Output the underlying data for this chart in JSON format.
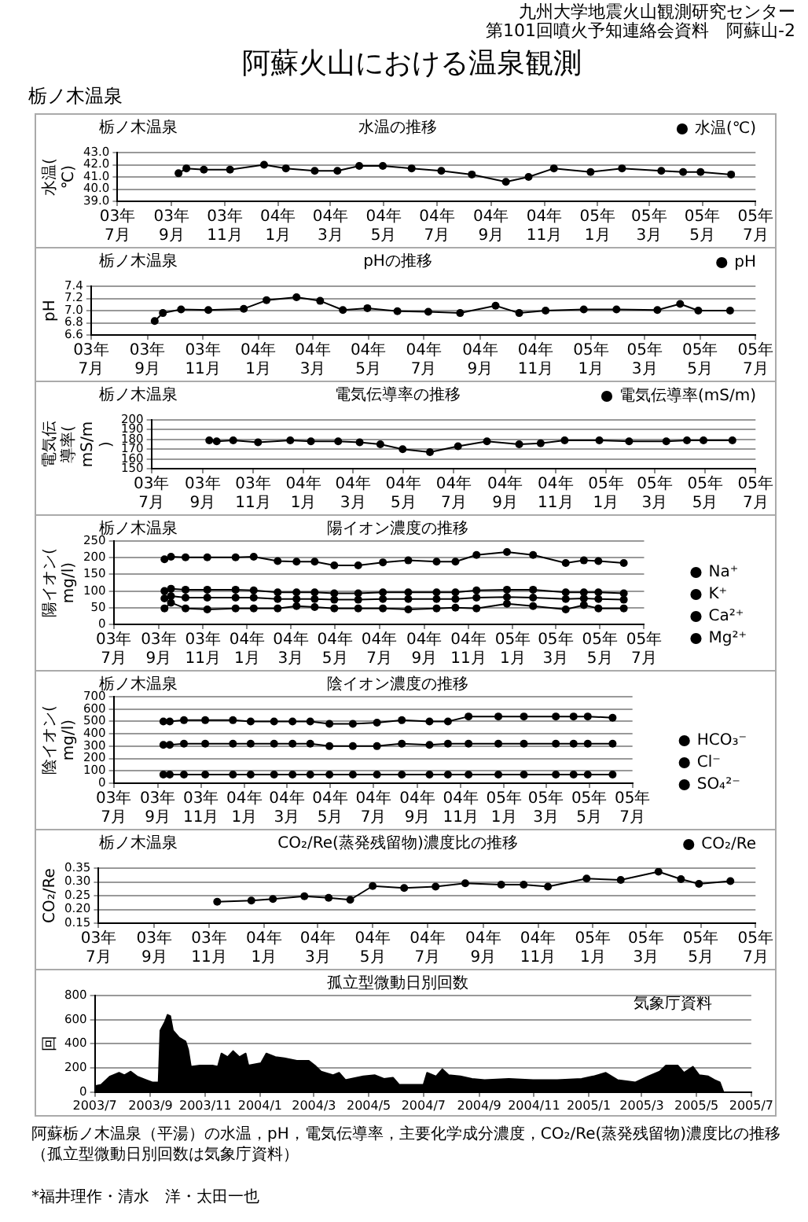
{
  "chart_data": [
    {
      "type": "line",
      "title": "水温の推移",
      "subtitle": "栃ノ木温泉",
      "ylabel": "水温(℃)",
      "annotations": [
        "九州大学地震火山観測研究センター",
        "第101回噴火予知連絡会資料　阿蘇山-2",
        "阿蘇火山における温泉観測",
        "栃ノ木温泉"
      ],
      "x": [
        "2003-09-09",
        "2003-09-18",
        "2003-10-08",
        "2003-11-07",
        "2003-12-16",
        "2004-01-10",
        "2004-02-12",
        "2004-03-09",
        "2004-04-03",
        "2004-04-30",
        "2004-06-02",
        "2004-07-06",
        "2004-08-10",
        "2004-09-18",
        "2004-10-14",
        "2004-11-12",
        "2004-12-24",
        "2005-01-29",
        "2005-03-15",
        "2005-04-09",
        "2005-04-29",
        "2005-06-03"
      ],
      "series": [
        {
          "name": "水温(℃)",
          "color": "#000000",
          "values": [
            41.3,
            41.7,
            41.6,
            41.6,
            42.0,
            41.7,
            41.5,
            41.5,
            41.9,
            41.9,
            41.7,
            41.5,
            41.2,
            40.6,
            41.0,
            41.7,
            41.4,
            41.7,
            41.5,
            41.4,
            41.4,
            41.2
          ]
        }
      ],
      "xlim": [
        "2003-07",
        "2005-07"
      ],
      "xticks": [
        {
          "value": "2003-07",
          "label": "03年7月"
        },
        {
          "value": "2003-09",
          "label": "03年9月"
        },
        {
          "value": "2003-11",
          "label": "03年11月"
        },
        {
          "value": "2004-01",
          "label": "04年1月"
        },
        {
          "value": "2004-03",
          "label": "04年3月"
        },
        {
          "value": "2004-05",
          "label": "04年5月"
        },
        {
          "value": "2004-07",
          "label": "04年7月"
        },
        {
          "value": "2004-09",
          "label": "04年9月"
        },
        {
          "value": "2004-11",
          "label": "04年11月"
        },
        {
          "value": "2005-01",
          "label": "05年1月"
        },
        {
          "value": "2005-03",
          "label": "05年3月"
        },
        {
          "value": "2005-05",
          "label": "05年5月"
        },
        {
          "value": "2005-07",
          "label": "05年7月"
        }
      ],
      "ylim": [
        39,
        43
      ],
      "yticks": [
        {
          "value": 39,
          "label": "39.0"
        },
        {
          "value": 40,
          "label": "40.0"
        },
        {
          "value": 41,
          "label": "41.0"
        },
        {
          "value": 42,
          "label": "42.0"
        },
        {
          "value": 43,
          "label": "43.0"
        }
      ],
      "grid": "y",
      "legend": "top right",
      "marker": "circle"
    },
    {
      "type": "line",
      "title": "pHの推移",
      "subtitle": "栃ノ木温泉",
      "ylabel": "pH",
      "x": [
        "2003-09-09",
        "2003-09-18",
        "2003-10-08",
        "2003-11-07",
        "2003-12-16",
        "2004-01-10",
        "2004-02-12",
        "2004-03-09",
        "2004-04-03",
        "2004-04-30",
        "2004-06-02",
        "2004-07-06",
        "2004-08-10",
        "2004-09-18",
        "2004-10-14",
        "2004-11-12",
        "2004-12-24",
        "2005-01-29",
        "2005-03-15",
        "2005-04-09",
        "2005-04-29",
        "2005-06-03"
      ],
      "series": [
        {
          "name": "pH",
          "color": "#000000",
          "values": [
            6.83,
            6.96,
            7.02,
            7.01,
            7.03,
            7.17,
            7.22,
            7.16,
            7.01,
            7.04,
            6.99,
            6.98,
            6.96,
            7.08,
            6.96,
            7.0,
            7.02,
            7.02,
            7.01,
            7.11,
            7.0,
            7.0
          ]
        }
      ],
      "xlim": [
        "2003-07",
        "2005-07"
      ],
      "xticks": [
        {
          "value": "2003-07",
          "label": "03年7月"
        },
        {
          "value": "2003-09",
          "label": "03年9月"
        },
        {
          "value": "2003-11",
          "label": "03年11月"
        },
        {
          "value": "2004-01",
          "label": "04年1月"
        },
        {
          "value": "2004-03",
          "label": "04年3月"
        },
        {
          "value": "2004-05",
          "label": "04年5月"
        },
        {
          "value": "2004-07",
          "label": "04年7月"
        },
        {
          "value": "2004-09",
          "label": "04年9月"
        },
        {
          "value": "2004-11",
          "label": "04年11月"
        },
        {
          "value": "2005-01",
          "label": "05年1月"
        },
        {
          "value": "2005-03",
          "label": "05年3月"
        },
        {
          "value": "2005-05",
          "label": "05年5月"
        },
        {
          "value": "2005-07",
          "label": "05年7月"
        }
      ],
      "ylim": [
        6.6,
        7.4
      ],
      "yticks": [
        6.6,
        6.8,
        {
          "value": 7,
          "label": "7.0"
        },
        7.2,
        7.4
      ],
      "grid": "y",
      "legend": "top right",
      "marker": "circle"
    },
    {
      "type": "line",
      "title": "電気伝導率の推移",
      "subtitle": "栃ノ木温泉",
      "ylabel": "電気伝導率(mS/m)",
      "x": [
        "2003-09-09",
        "2003-09-18",
        "2003-10-08",
        "2003-11-07",
        "2003-12-16",
        "2004-01-10",
        "2004-02-12",
        "2004-03-09",
        "2004-04-03",
        "2004-04-30",
        "2004-06-02",
        "2004-07-06",
        "2004-08-10",
        "2004-09-18",
        "2004-10-14",
        "2004-11-12",
        "2004-12-24",
        "2005-01-29",
        "2005-03-15",
        "2005-04-09",
        "2005-04-29",
        "2005-06-03"
      ],
      "series": [
        {
          "name": "電気伝導率(mS/m)",
          "color": "#000000",
          "values": [
            179,
            178,
            179,
            177,
            179,
            178,
            178,
            177,
            175,
            170,
            167,
            173,
            178,
            175,
            176,
            179,
            179,
            178,
            178,
            179,
            179,
            179
          ]
        }
      ],
      "xlim": [
        "2003-07",
        "2005-07"
      ],
      "xticks": [
        {
          "value": "2003-07",
          "label": "03年7月"
        },
        {
          "value": "2003-09",
          "label": "03年9月"
        },
        {
          "value": "2003-11",
          "label": "03年11月"
        },
        {
          "value": "2004-01",
          "label": "04年1月"
        },
        {
          "value": "2004-03",
          "label": "04年3月"
        },
        {
          "value": "2004-05",
          "label": "04年5月"
        },
        {
          "value": "2004-07",
          "label": "04年7月"
        },
        {
          "value": "2004-09",
          "label": "04年9月"
        },
        {
          "value": "2004-11",
          "label": "04年11月"
        },
        {
          "value": "2005-01",
          "label": "05年1月"
        },
        {
          "value": "2005-03",
          "label": "05年3月"
        },
        {
          "value": "2005-05",
          "label": "05年5月"
        },
        {
          "value": "2005-07",
          "label": "05年7月"
        }
      ],
      "ylim": [
        150,
        200
      ],
      "yticks": [
        150,
        160,
        170,
        180,
        190,
        200
      ],
      "grid": "y",
      "legend": "top right",
      "marker": "circle"
    },
    {
      "type": "line",
      "title": "陽イオン濃度の推移",
      "subtitle": "栃ノ木温泉",
      "ylabel": "陽イオン(mg/l)",
      "x": [
        "2003-09-09",
        "2003-09-18",
        "2003-10-08",
        "2003-11-07",
        "2003-12-16",
        "2004-01-10",
        "2004-02-12",
        "2004-03-09",
        "2004-04-03",
        "2004-04-30",
        "2004-06-02",
        "2004-07-06",
        "2004-08-10",
        "2004-09-18",
        "2004-10-14",
        "2004-11-12",
        "2004-12-24",
        "2005-01-29",
        "2005-03-15",
        "2005-04-09",
        "2005-04-29",
        "2005-06-03"
      ],
      "series": [
        {
          "name": "Na⁺",
          "color": "#000000",
          "values": [
            195,
            203,
            201,
            201,
            201,
            203,
            190,
            188,
            188,
            177,
            177,
            186,
            192,
            188,
            188,
            208,
            217,
            208,
            184,
            192,
            190,
            184
          ]
        },
        {
          "name": "K⁺",
          "color": "#000000",
          "values": [
            48,
            65,
            48,
            45,
            48,
            48,
            48,
            55,
            52,
            48,
            48,
            48,
            45,
            48,
            50,
            48,
            62,
            55,
            45,
            58,
            48,
            48
          ]
        },
        {
          "name": "Ca²⁺",
          "color": "#000000",
          "values": [
            78,
            85,
            80,
            80,
            80,
            80,
            76,
            76,
            76,
            74,
            74,
            76,
            76,
            76,
            76,
            80,
            82,
            80,
            76,
            78,
            76,
            74
          ]
        },
        {
          "name": "Mg²⁺",
          "color": "#000000",
          "values": [
            100,
            107,
            104,
            104,
            104,
            102,
            96,
            96,
            96,
            93,
            93,
            96,
            96,
            96,
            96,
            102,
            104,
            104,
            96,
            96,
            96,
            93
          ]
        }
      ],
      "xlim": [
        "2003-07",
        "2005-07"
      ],
      "xticks": [
        {
          "value": "2003-07",
          "label": "03年7月"
        },
        {
          "value": "2003-09",
          "label": "03年9月"
        },
        {
          "value": "2003-11",
          "label": "03年11月"
        },
        {
          "value": "2004-01",
          "label": "04年1月"
        },
        {
          "value": "2004-03",
          "label": "04年3月"
        },
        {
          "value": "2004-05",
          "label": "04年5月"
        },
        {
          "value": "2004-07",
          "label": "04年7月"
        },
        {
          "value": "2004-09",
          "label": "04年9月"
        },
        {
          "value": "2004-11",
          "label": "04年11月"
        },
        {
          "value": "2005-01",
          "label": "05年1月"
        },
        {
          "value": "2005-03",
          "label": "05年3月"
        },
        {
          "value": "2005-05",
          "label": "05年5月"
        },
        {
          "value": "2005-07",
          "label": "05年7月"
        }
      ],
      "ylim": [
        0,
        250
      ],
      "yticks": [
        0,
        50,
        100,
        150,
        200,
        250
      ],
      "grid": "y",
      "legend": "right",
      "marker": "circle"
    },
    {
      "type": "line",
      "title": "陰イオン濃度の推移",
      "subtitle": "栃ノ木温泉",
      "ylabel": "陰イオン(mg/l)",
      "x": [
        "2003-09-09",
        "2003-09-18",
        "2003-10-08",
        "2003-11-07",
        "2003-12-16",
        "2004-01-10",
        "2004-02-12",
        "2004-03-09",
        "2004-04-03",
        "2004-04-30",
        "2004-06-02",
        "2004-07-06",
        "2004-08-10",
        "2004-09-18",
        "2004-10-14",
        "2004-11-12",
        "2004-12-24",
        "2005-01-29",
        "2005-03-15",
        "2005-04-09",
        "2005-04-29",
        "2005-06-03"
      ],
      "series": [
        {
          "name": "HCO₃⁻",
          "color": "#000000",
          "values": [
            500,
            500,
            510,
            510,
            510,
            500,
            500,
            500,
            500,
            480,
            480,
            490,
            510,
            500,
            500,
            540,
            540,
            540,
            540,
            540,
            540,
            530
          ]
        },
        {
          "name": "Cl⁻",
          "color": "#000000",
          "values": [
            310,
            310,
            320,
            320,
            320,
            320,
            320,
            320,
            320,
            300,
            300,
            300,
            320,
            310,
            320,
            320,
            320,
            320,
            320,
            320,
            320,
            320
          ]
        },
        {
          "name": "SO₄²⁻",
          "color": "#000000",
          "values": [
            70,
            70,
            70,
            70,
            70,
            70,
            70,
            70,
            70,
            70,
            70,
            70,
            70,
            70,
            70,
            70,
            70,
            70,
            70,
            70,
            70,
            70
          ]
        }
      ],
      "xlim": [
        "2003-07",
        "2005-07"
      ],
      "xticks": [
        {
          "value": "2003-07",
          "label": "03年7月"
        },
        {
          "value": "2003-09",
          "label": "03年9月"
        },
        {
          "value": "2003-11",
          "label": "03年11月"
        },
        {
          "value": "2004-01",
          "label": "04年1月"
        },
        {
          "value": "2004-03",
          "label": "04年3月"
        },
        {
          "value": "2004-05",
          "label": "04年5月"
        },
        {
          "value": "2004-07",
          "label": "04年7月"
        },
        {
          "value": "2004-09",
          "label": "04年9月"
        },
        {
          "value": "2004-11",
          "label": "04年11月"
        },
        {
          "value": "2005-01",
          "label": "05年1月"
        },
        {
          "value": "2005-03",
          "label": "05年3月"
        },
        {
          "value": "2005-05",
          "label": "05年5月"
        },
        {
          "value": "2005-07",
          "label": "05年7月"
        }
      ],
      "ylim": [
        0,
        700
      ],
      "yticks": [
        0,
        100,
        200,
        300,
        400,
        500,
        600,
        700
      ],
      "grid": "y",
      "legend": "right",
      "marker": "circle"
    },
    {
      "type": "line",
      "title": "CO₂/Re(蒸発残留物)濃度比の推移",
      "subtitle": "栃ノ木温泉",
      "ylabel": "CO₂/Re",
      "x": [
        "2003-11-10",
        "2003-12-18",
        "2004-01-11",
        "2004-02-15",
        "2004-03-13",
        "2004-04-06",
        "2004-05-01",
        "2004-06-05",
        "2004-07-10",
        "2004-08-12",
        "2004-09-21",
        "2004-10-16",
        "2004-11-12",
        "2004-12-25",
        "2005-02-01",
        "2005-03-15",
        "2005-04-09",
        "2005-04-29",
        "2005-06-03"
      ],
      "series": [
        {
          "name": "CO₂/Re",
          "color": "#000000",
          "values": [
            0.228,
            0.232,
            0.238,
            0.248,
            0.242,
            0.235,
            0.285,
            0.278,
            0.283,
            0.295,
            0.29,
            0.29,
            0.283,
            0.312,
            0.307,
            0.337,
            0.31,
            0.293,
            0.303
          ]
        }
      ],
      "xlim": [
        "2003-07",
        "2005-07"
      ],
      "xticks": [
        {
          "value": "2003-07",
          "label": "03年7月"
        },
        {
          "value": "2003-09",
          "label": "03年9月"
        },
        {
          "value": "2003-11",
          "label": "03年11月"
        },
        {
          "value": "2004-01",
          "label": "04年1月"
        },
        {
          "value": "2004-03",
          "label": "04年3月"
        },
        {
          "value": "2004-05",
          "label": "04年5月"
        },
        {
          "value": "2004-07",
          "label": "04年7月"
        },
        {
          "value": "2004-09",
          "label": "04年9月"
        },
        {
          "value": "2004-11",
          "label": "04年11月"
        },
        {
          "value": "2005-01",
          "label": "05年1月"
        },
        {
          "value": "2005-03",
          "label": "05年3月"
        },
        {
          "value": "2005-05",
          "label": "05年5月"
        },
        {
          "value": "2005-07",
          "label": "05年7月"
        }
      ],
      "ylim": [
        0.15,
        0.35
      ],
      "yticks": [
        0.15,
        {
          "value": 0.2,
          "label": "0.20"
        },
        0.25,
        {
          "value": 0.3,
          "label": "0.30"
        },
        0.35
      ],
      "grid": "y",
      "legend": "top right",
      "marker": "circle"
    },
    {
      "type": "area",
      "title": "孤立型微動日別回数",
      "ylabel": "回",
      "annotations": [
        "気象庁資料",
        "阿蘇栃ノ木温泉（平湯）の水温，pH，電気伝導率，主要化学成分濃度，CO₂/Re(蒸発残留物)濃度比の推移",
        "（孤立型微動日別回数は気象庁資料）",
        "*福井理作・清水　洋・太田一也"
      ],
      "x": [
        "2003-07-01",
        "2003-07-08",
        "2003-07-18",
        "2003-07-28",
        "2003-08-03",
        "2003-08-10",
        "2003-08-17",
        "2003-08-27",
        "2003-09-03",
        "2003-09-10",
        "2003-09-12",
        "2003-09-17",
        "2003-09-20",
        "2003-09-23",
        "2003-09-26",
        "2003-10-03",
        "2003-10-10",
        "2003-10-13",
        "2003-10-16",
        "2003-10-26",
        "2003-11-09",
        "2003-11-15",
        "2003-11-19",
        "2003-11-26",
        "2003-12-02",
        "2003-12-09",
        "2003-12-16",
        "2003-12-19",
        "2004-01-02",
        "2004-01-08",
        "2004-01-18",
        "2004-01-28",
        "2004-02-11",
        "2004-02-24",
        "2004-03-02",
        "2004-03-09",
        "2004-03-22",
        "2004-03-29",
        "2004-04-05",
        "2004-04-25",
        "2004-05-08",
        "2004-05-18",
        "2004-05-28",
        "2004-06-04",
        "2004-06-18",
        "2004-07-01",
        "2004-07-05",
        "2004-07-15",
        "2004-07-22",
        "2004-07-29",
        "2004-08-11",
        "2004-08-24",
        "2004-09-07",
        "2004-10-04",
        "2004-10-31",
        "2004-11-27",
        "2004-12-24",
        "2005-01-06",
        "2005-01-20",
        "2005-02-02",
        "2005-02-22",
        "2005-03-08",
        "2005-03-21",
        "2005-03-28",
        "2005-04-10",
        "2005-04-17",
        "2005-04-27",
        "2005-05-04",
        "2005-05-14",
        "2005-05-21",
        "2005-05-27",
        "2005-05-31"
      ],
      "series": [
        {
          "color": "#000000",
          "values": [
            50,
            60,
            130,
            160,
            140,
            170,
            130,
            100,
            80,
            80,
            510,
            580,
            640,
            630,
            510,
            450,
            420,
            350,
            210,
            220,
            220,
            210,
            320,
            290,
            340,
            290,
            320,
            220,
            240,
            320,
            290,
            280,
            260,
            260,
            220,
            170,
            140,
            160,
            100,
            130,
            140,
            110,
            120,
            60,
            60,
            60,
            160,
            130,
            190,
            140,
            130,
            110,
            100,
            110,
            100,
            100,
            110,
            130,
            160,
            100,
            80,
            130,
            170,
            220,
            220,
            160,
            210,
            140,
            130,
            100,
            80,
            0
          ]
        }
      ],
      "xlim": [
        "2003-07",
        "2005-07"
      ],
      "xticks": [
        {
          "value": "2003-07",
          "label": "2003/7"
        },
        {
          "value": "2003-09",
          "label": "2003/9"
        },
        {
          "value": "2003-11",
          "label": "2003/11"
        },
        {
          "value": "2004-01",
          "label": "2004/1"
        },
        {
          "value": "2004-03",
          "label": "2004/3"
        },
        {
          "value": "2004-05",
          "label": "2004/5"
        },
        {
          "value": "2004-07",
          "label": "2004/7"
        },
        {
          "value": "2004-09",
          "label": "2004/9"
        },
        {
          "value": "2004-11",
          "label": "2004/11"
        },
        {
          "value": "2005-01",
          "label": "2005/1"
        },
        {
          "value": "2005-03",
          "label": "2005/3"
        },
        {
          "value": "2005-05",
          "label": "2005/5"
        },
        {
          "value": "2005-07",
          "label": "2005/7"
        }
      ],
      "ylim": [
        0,
        800
      ],
      "yticks": [
        0,
        200,
        400,
        600,
        800
      ],
      "grid": "y"
    }
  ]
}
